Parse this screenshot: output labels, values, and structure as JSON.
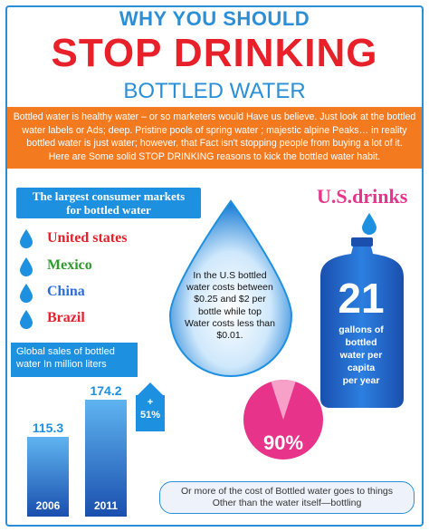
{
  "header": {
    "line1": "WHY YOU SHOULD",
    "line2": "STOP DRINKING",
    "line3": "BOTTLED WATER"
  },
  "intro": {
    "line1": "Bottled water is healthy water – or so marketers would Have us believe.  Just look at the bottled",
    "line2": "water labels or Ads; deep. Pristine pools of spring water ; majestic  alpine  Peaks… in reality",
    "line3": "bottled water is just water;  however, that Fact isn't stopping people from buying a lot of it.",
    "line4": "Here are Some solid STOP DRINKING reasons to kick the bottled  water  habit."
  },
  "markets": {
    "title_line1": "The largest  consumer markets",
    "title_line2": "for bottled water",
    "countries": [
      {
        "name": "United states",
        "color": "#e8202a"
      },
      {
        "name": "Mexico",
        "color": "#2e9a2e"
      },
      {
        "name": "China",
        "color": "#2a6fd6"
      },
      {
        "name": "Brazil",
        "color": "#e8202a"
      }
    ]
  },
  "sales": {
    "title_line1": "Global sales of bottled",
    "title_line2": "water  In million liters",
    "bars": [
      {
        "year": "2006",
        "value": "115.3"
      },
      {
        "year": "2011",
        "value": "174.2"
      }
    ],
    "growth_plus": "+",
    "growth": "51%"
  },
  "cost": {
    "line1": "In the U.S bottled",
    "line2": "water costs between",
    "line3": "$0.25 and $2 per",
    "line4": "bottle while top",
    "line5": "Water costs less than",
    "line6": "$0.01."
  },
  "usdrinks": {
    "title": "U.S.drinks",
    "number": "21",
    "line1": "gallons of",
    "line2": "bottled",
    "line3": "water per",
    "line4": "capita",
    "line5": "per year"
  },
  "pie": {
    "value": "90%",
    "fraction": 0.9
  },
  "note": {
    "line1": "Or more of the cost of Bottled water  goes to things",
    "line2": "Other than the water itself—bottling"
  },
  "colors": {
    "blue": "#1e90e0",
    "orange": "#f47a20",
    "red": "#e8202a",
    "pink": "#e8338a"
  }
}
